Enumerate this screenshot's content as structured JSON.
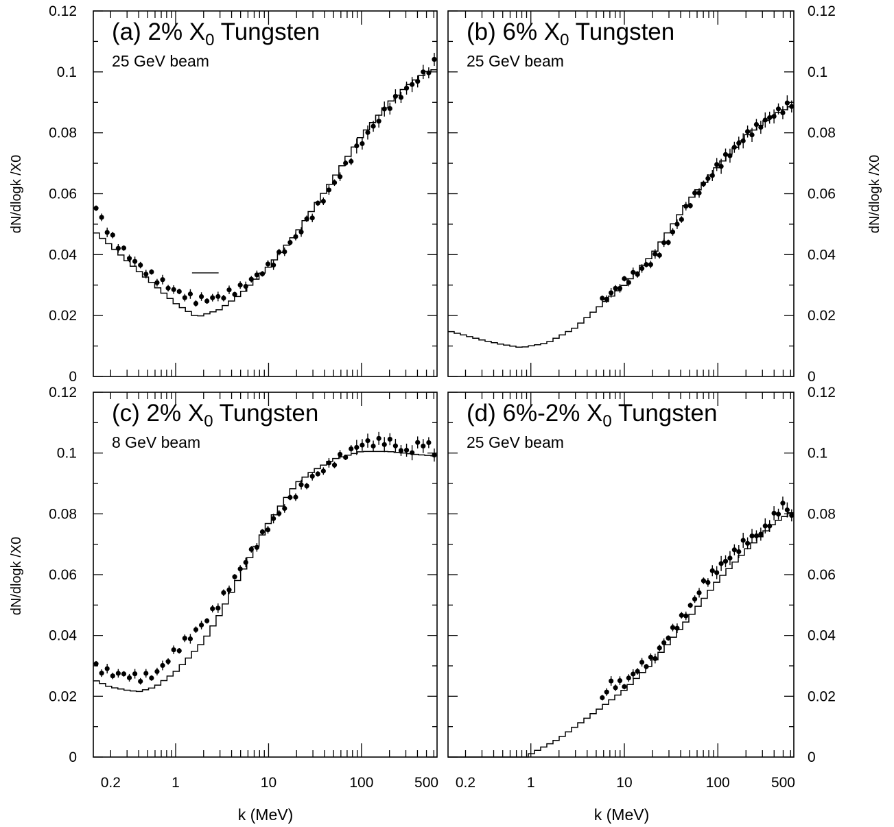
{
  "figure": {
    "x_axis_title": "k (MeV)",
    "y_axis_title": "dN/dlogk /X0",
    "x_tick_labels": [
      "0.2",
      "1",
      "10",
      "100",
      "500"
    ],
    "y_tick_labels": [
      "0",
      "0.02",
      "0.04",
      "0.06",
      "0.08",
      "0.1",
      "0.12"
    ]
  },
  "chart_data": [
    {
      "type": "line",
      "panel": "a",
      "title_prefix": "(a) 2% X",
      "title_sub": "0",
      "title_suffix": " Tungsten",
      "subtitle": "25 GeV beam",
      "xlabel": "",
      "ylabel": "dN/dlogk /X0",
      "xscale": "log",
      "xlim": [
        0.13,
        650
      ],
      "ylim": [
        0,
        0.12
      ],
      "y_ticks": [
        0,
        0.02,
        0.04,
        0.06,
        0.08,
        0.1,
        0.12
      ],
      "series": [
        {
          "kind": "histogram",
          "x": [
            0.13,
            0.2,
            0.3,
            0.5,
            1,
            1.7,
            3,
            5,
            10,
            20,
            50,
            100,
            200,
            300,
            500,
            650
          ],
          "y": [
            0.048,
            0.043,
            0.038,
            0.032,
            0.024,
            0.0195,
            0.022,
            0.027,
            0.036,
            0.047,
            0.065,
            0.079,
            0.09,
            0.095,
            0.1,
            0.101
          ]
        },
        {
          "kind": "points",
          "x": [
            0.13,
            0.2,
            0.3,
            0.5,
            1,
            1.7,
            3,
            5,
            10,
            20,
            50,
            100,
            200,
            300,
            500,
            650
          ],
          "y": [
            0.057,
            0.046,
            0.04,
            0.034,
            0.028,
            0.025,
            0.026,
            0.029,
            0.036,
            0.046,
            0.063,
            0.077,
            0.089,
            0.094,
            0.1,
            0.104
          ]
        }
      ]
    },
    {
      "type": "line",
      "panel": "b",
      "title_prefix": "(b) 6% X",
      "title_sub": "0",
      "title_suffix": " Tungsten",
      "subtitle": "25 GeV beam",
      "xlabel": "",
      "ylabel": "dN/dlogk /X0",
      "xscale": "log",
      "xlim": [
        0.13,
        650
      ],
      "ylim": [
        0,
        0.12
      ],
      "y_ticks": [
        0,
        0.02,
        0.04,
        0.06,
        0.08,
        0.1,
        0.12
      ],
      "series": [
        {
          "kind": "histogram",
          "x": [
            0.13,
            0.3,
            0.5,
            0.8,
            1.5,
            3,
            5,
            10,
            20,
            50,
            100,
            200,
            400,
            650
          ],
          "y": [
            0.015,
            0.012,
            0.0105,
            0.0095,
            0.011,
            0.016,
            0.022,
            0.03,
            0.04,
            0.058,
            0.069,
            0.079,
            0.086,
            0.089
          ]
        },
        {
          "kind": "points",
          "x": [
            5.5,
            7,
            10,
            15,
            20,
            30,
            50,
            100,
            200,
            400,
            650
          ],
          "y": [
            0.024,
            0.027,
            0.031,
            0.035,
            0.038,
            0.045,
            0.057,
            0.069,
            0.079,
            0.086,
            0.09
          ]
        }
      ]
    },
    {
      "type": "line",
      "panel": "c",
      "title_prefix": "(c) 2% X",
      "title_sub": "0",
      "title_suffix": " Tungsten",
      "subtitle": "8 GeV beam",
      "xlabel": "k (MeV)",
      "ylabel": "dN/dlogk /X0",
      "xscale": "log",
      "xlim": [
        0.13,
        650
      ],
      "ylim": [
        0,
        0.12
      ],
      "y_ticks": [
        0,
        0.02,
        0.04,
        0.06,
        0.08,
        0.1,
        0.12
      ],
      "series": [
        {
          "kind": "histogram",
          "x": [
            0.13,
            0.2,
            0.3,
            0.4,
            0.6,
            1,
            2,
            3,
            5,
            10,
            20,
            30,
            50,
            100,
            200,
            400,
            650
          ],
          "y": [
            0.0255,
            0.023,
            0.022,
            0.0215,
            0.023,
            0.028,
            0.038,
            0.047,
            0.06,
            0.077,
            0.09,
            0.094,
            0.098,
            0.1005,
            0.1005,
            0.0995,
            0.099
          ]
        },
        {
          "kind": "points",
          "x": [
            0.13,
            0.2,
            0.3,
            0.4,
            0.6,
            1,
            2,
            3,
            5,
            10,
            20,
            30,
            50,
            100,
            200,
            300,
            500,
            650
          ],
          "y": [
            0.03,
            0.0275,
            0.027,
            0.026,
            0.027,
            0.035,
            0.044,
            0.051,
            0.062,
            0.076,
            0.087,
            0.092,
            0.097,
            0.103,
            0.104,
            0.1,
            0.104,
            0.098
          ]
        }
      ]
    },
    {
      "type": "line",
      "panel": "d",
      "title_prefix": "(d) 6%-2% X",
      "title_sub": "0",
      "title_suffix": " Tungsten",
      "subtitle": "25 GeV beam",
      "xlabel": "k (MeV)",
      "ylabel": "",
      "xscale": "log",
      "xlim": [
        0.13,
        650
      ],
      "ylim": [
        0,
        0.12
      ],
      "y_ticks": [
        0,
        0.02,
        0.04,
        0.06,
        0.08,
        0.1,
        0.12
      ],
      "series": [
        {
          "kind": "histogram",
          "x": [
            0.13,
            0.9,
            1,
            2,
            3,
            5,
            10,
            20,
            50,
            100,
            200,
            400,
            650
          ],
          "y": [
            0,
            0,
            0.001,
            0.006,
            0.01,
            0.015,
            0.022,
            0.031,
            0.046,
            0.058,
            0.068,
            0.077,
            0.081
          ]
        },
        {
          "kind": "points",
          "x": [
            5.5,
            7,
            10,
            15,
            20,
            30,
            50,
            70,
            100,
            200,
            300,
            500,
            650
          ],
          "y": [
            0.018,
            0.024,
            0.024,
            0.03,
            0.032,
            0.04,
            0.049,
            0.057,
            0.062,
            0.071,
            0.074,
            0.083,
            0.079
          ]
        }
      ]
    }
  ]
}
